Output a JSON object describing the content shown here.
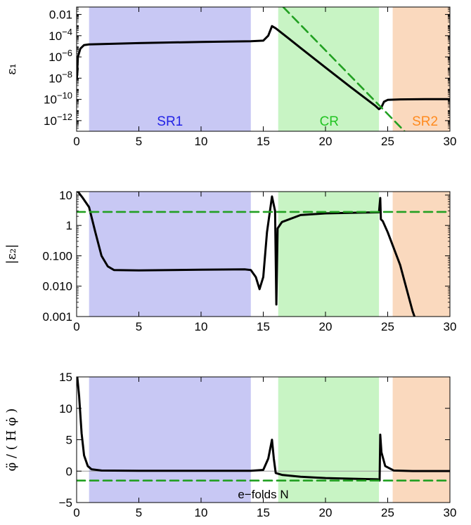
{
  "chart_data": [
    {
      "id": "eps1",
      "type": "line",
      "ylabel": "ε₁",
      "xlabel": "",
      "xlim": [
        0,
        30
      ],
      "ylim": [
        1e-13,
        0.05
      ],
      "yscale": "log",
      "xticks": [
        0,
        5,
        10,
        15,
        20,
        25,
        30
      ],
      "x_tick_labels": [
        "0",
        "5",
        "10",
        "15",
        "20",
        "25",
        "30"
      ],
      "yticks": [
        1e-12,
        1e-10,
        1e-08,
        1e-06,
        0.0001,
        0.01
      ],
      "y_tick_labels": [
        {
          "base": "10",
          "exp": "−12"
        },
        {
          "base": "10",
          "exp": "−10"
        },
        {
          "base": "10",
          "exp": "−8"
        },
        {
          "base": "10",
          "exp": "−6"
        },
        {
          "base": "10",
          "exp": "−4"
        },
        {
          "base": "0.01",
          "exp": ""
        }
      ],
      "regions": [
        {
          "label": "SR1",
          "x": [
            1,
            14
          ],
          "color": "#c8c8f4",
          "label_color": "#2222e6",
          "label_x": 7.5
        },
        {
          "label": "CR",
          "x": [
            16.2,
            24.3
          ],
          "color": "#c8f4c4",
          "label_color": "#22c422",
          "label_x": 20.3
        },
        {
          "label": "SR2",
          "x": [
            25.4,
            30
          ],
          "color": "#fad9be",
          "label_color": "#ff8a1e",
          "label_x": 28
        }
      ],
      "series": [
        {
          "role": "numerical",
          "color": "#000000",
          "style": "solid",
          "points": [
            [
              0.02,
              1e-08
            ],
            [
              0.1,
              1e-06
            ],
            [
              0.3,
              6e-06
            ],
            [
              0.6,
              1.3e-05
            ],
            [
              1,
              1.5e-05
            ],
            [
              5,
              2e-05
            ],
            [
              10,
              2.6e-05
            ],
            [
              14,
              3e-05
            ],
            [
              15,
              3.4e-05
            ],
            [
              15.4,
              0.0001
            ],
            [
              15.7,
              0.0008
            ],
            [
              16,
              0.0005
            ],
            [
              17,
              6e-05
            ],
            [
              18,
              7e-06
            ],
            [
              20,
              1e-07
            ],
            [
              22,
              1.5e-09
            ],
            [
              24,
              2.5e-11
            ],
            [
              24.3,
              1.2e-11
            ],
            [
              24.5,
              1.8e-11
            ],
            [
              24.7,
              6e-11
            ],
            [
              25,
              9e-11
            ],
            [
              26,
              1e-10
            ],
            [
              28,
              1.05e-10
            ],
            [
              30,
              1.05e-10
            ]
          ]
        },
        {
          "role": "analytic",
          "color": "#22a022",
          "style": "dashed",
          "points": [
            [
              16.6,
              0.05
            ],
            [
              26.35,
              1e-13
            ]
          ]
        }
      ]
    },
    {
      "id": "eps2",
      "type": "line",
      "ylabel": "|ε₂|",
      "xlabel": "",
      "xlim": [
        0,
        30
      ],
      "ylim": [
        0.001,
        13
      ],
      "yscale": "log",
      "xticks": [
        0,
        5,
        10,
        15,
        20,
        25,
        30
      ],
      "x_tick_labels": [
        "0",
        "5",
        "10",
        "15",
        "20",
        "25",
        "30"
      ],
      "yticks": [
        0.001,
        0.01,
        0.1,
        1,
        10
      ],
      "y_tick_labels": [
        {
          "base": "0.001",
          "exp": ""
        },
        {
          "base": "0.010",
          "exp": ""
        },
        {
          "base": "0.100",
          "exp": ""
        },
        {
          "base": "1",
          "exp": ""
        },
        {
          "base": "10",
          "exp": ""
        }
      ],
      "regions": [
        {
          "label": "",
          "x": [
            1,
            14
          ],
          "color": "#c8c8f4"
        },
        {
          "label": "",
          "x": [
            16.2,
            24.3
          ],
          "color": "#c8f4c4"
        },
        {
          "label": "",
          "x": [
            25.4,
            30
          ],
          "color": "#fad9be"
        }
      ],
      "series": [
        {
          "role": "numerical",
          "color": "#000000",
          "style": "solid",
          "points": [
            [
              0.1,
              13
            ],
            [
              0.5,
              8
            ],
            [
              1,
              4
            ],
            [
              1.5,
              0.6
            ],
            [
              2,
              0.1
            ],
            [
              2.5,
              0.045
            ],
            [
              3,
              0.034
            ],
            [
              5,
              0.033
            ],
            [
              10,
              0.035
            ],
            [
              13.5,
              0.036
            ],
            [
              14,
              0.034
            ],
            [
              14.4,
              0.02
            ],
            [
              14.7,
              0.008
            ],
            [
              15,
              0.02
            ],
            [
              15.3,
              0.6
            ],
            [
              15.7,
              9
            ],
            [
              15.95,
              3
            ],
            [
              16.05,
              0.0025
            ],
            [
              16.15,
              0.8
            ],
            [
              16.5,
              1.3
            ],
            [
              18,
              2.2
            ],
            [
              20,
              2.5
            ],
            [
              22,
              2.6
            ],
            [
              24.3,
              2.7
            ],
            [
              24.4,
              8
            ],
            [
              24.45,
              1.6
            ],
            [
              24.6,
              1.4
            ],
            [
              25,
              0.6
            ],
            [
              26,
              0.05
            ],
            [
              27,
              0.0015
            ],
            [
              27.15,
              0.001
            ]
          ]
        },
        {
          "role": "analytic",
          "color": "#22a022",
          "style": "dashed",
          "points": [
            [
              0,
              2.8
            ],
            [
              30,
              2.8
            ]
          ]
        }
      ]
    },
    {
      "id": "phiddot",
      "type": "line",
      "ylabel": "φ̈ / ( H φ̇ )",
      "xlabel": "e−folds N",
      "xlim": [
        0,
        30
      ],
      "ylim": [
        -5,
        15
      ],
      "yscale": "linear",
      "xticks": [
        0,
        5,
        10,
        15,
        20,
        25,
        30
      ],
      "x_tick_labels": [
        "0",
        "5",
        "10",
        "15",
        "20",
        "25",
        "30"
      ],
      "yticks": [
        -5,
        0,
        5,
        10,
        15
      ],
      "y_tick_labels": [
        {
          "base": "−5",
          "exp": ""
        },
        {
          "base": "0",
          "exp": ""
        },
        {
          "base": "5",
          "exp": ""
        },
        {
          "base": "10",
          "exp": ""
        },
        {
          "base": "15",
          "exp": ""
        }
      ],
      "regions": [
        {
          "label": "",
          "x": [
            1,
            14
          ],
          "color": "#c8c8f4"
        },
        {
          "label": "",
          "x": [
            16.2,
            24.3
          ],
          "color": "#c8f4c4"
        },
        {
          "label": "",
          "x": [
            25.4,
            30
          ],
          "color": "#fad9be"
        }
      ],
      "zero_line": true,
      "series": [
        {
          "role": "numerical",
          "color": "#000000",
          "style": "solid",
          "points": [
            [
              0.05,
              15
            ],
            [
              0.2,
              12
            ],
            [
              0.4,
              6
            ],
            [
              0.6,
              2.5
            ],
            [
              0.9,
              0.8
            ],
            [
              1.2,
              0.3
            ],
            [
              2,
              0.1
            ],
            [
              5,
              0.05
            ],
            [
              10,
              0.05
            ],
            [
              14,
              0.05
            ],
            [
              15,
              0.2
            ],
            [
              15.4,
              2
            ],
            [
              15.7,
              5
            ],
            [
              15.85,
              2
            ],
            [
              16,
              -0.3
            ],
            [
              16.5,
              -0.6
            ],
            [
              18,
              -0.9
            ],
            [
              20,
              -1.1
            ],
            [
              22,
              -1.2
            ],
            [
              24.2,
              -1.3
            ],
            [
              24.35,
              -1.5
            ],
            [
              24.4,
              5.8
            ],
            [
              24.5,
              3
            ],
            [
              24.8,
              0.8
            ],
            [
              25.5,
              0.1
            ],
            [
              27,
              0.02
            ],
            [
              30,
              0.02
            ]
          ]
        },
        {
          "role": "analytic",
          "color": "#22a022",
          "style": "dashed",
          "points": [
            [
              0,
              -1.5
            ],
            [
              30,
              -1.5
            ]
          ]
        }
      ]
    }
  ]
}
